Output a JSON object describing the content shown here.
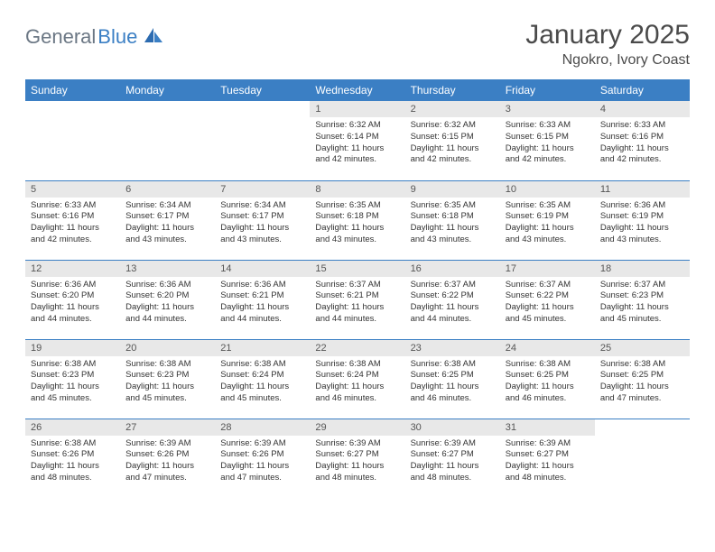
{
  "brand": {
    "text1": "General",
    "text2": "Blue"
  },
  "title": {
    "month": "January 2025",
    "location": "Ngokro, Ivory Coast"
  },
  "styling": {
    "header_bg": "#3b7fc4",
    "header_text": "#ffffff",
    "daynum_bg": "#e8e8e8",
    "row_border": "#3b7fc4",
    "body_font_size": 9.5,
    "header_font_size": 12,
    "title_font_size": 30
  },
  "day_names": [
    "Sunday",
    "Monday",
    "Tuesday",
    "Wednesday",
    "Thursday",
    "Friday",
    "Saturday"
  ],
  "weeks": [
    [
      {
        "n": "",
        "sr": "",
        "ss": "",
        "dl": ""
      },
      {
        "n": "",
        "sr": "",
        "ss": "",
        "dl": ""
      },
      {
        "n": "",
        "sr": "",
        "ss": "",
        "dl": ""
      },
      {
        "n": "1",
        "sr": "Sunrise: 6:32 AM",
        "ss": "Sunset: 6:14 PM",
        "dl": "Daylight: 11 hours and 42 minutes."
      },
      {
        "n": "2",
        "sr": "Sunrise: 6:32 AM",
        "ss": "Sunset: 6:15 PM",
        "dl": "Daylight: 11 hours and 42 minutes."
      },
      {
        "n": "3",
        "sr": "Sunrise: 6:33 AM",
        "ss": "Sunset: 6:15 PM",
        "dl": "Daylight: 11 hours and 42 minutes."
      },
      {
        "n": "4",
        "sr": "Sunrise: 6:33 AM",
        "ss": "Sunset: 6:16 PM",
        "dl": "Daylight: 11 hours and 42 minutes."
      }
    ],
    [
      {
        "n": "5",
        "sr": "Sunrise: 6:33 AM",
        "ss": "Sunset: 6:16 PM",
        "dl": "Daylight: 11 hours and 42 minutes."
      },
      {
        "n": "6",
        "sr": "Sunrise: 6:34 AM",
        "ss": "Sunset: 6:17 PM",
        "dl": "Daylight: 11 hours and 43 minutes."
      },
      {
        "n": "7",
        "sr": "Sunrise: 6:34 AM",
        "ss": "Sunset: 6:17 PM",
        "dl": "Daylight: 11 hours and 43 minutes."
      },
      {
        "n": "8",
        "sr": "Sunrise: 6:35 AM",
        "ss": "Sunset: 6:18 PM",
        "dl": "Daylight: 11 hours and 43 minutes."
      },
      {
        "n": "9",
        "sr": "Sunrise: 6:35 AM",
        "ss": "Sunset: 6:18 PM",
        "dl": "Daylight: 11 hours and 43 minutes."
      },
      {
        "n": "10",
        "sr": "Sunrise: 6:35 AM",
        "ss": "Sunset: 6:19 PM",
        "dl": "Daylight: 11 hours and 43 minutes."
      },
      {
        "n": "11",
        "sr": "Sunrise: 6:36 AM",
        "ss": "Sunset: 6:19 PM",
        "dl": "Daylight: 11 hours and 43 minutes."
      }
    ],
    [
      {
        "n": "12",
        "sr": "Sunrise: 6:36 AM",
        "ss": "Sunset: 6:20 PM",
        "dl": "Daylight: 11 hours and 44 minutes."
      },
      {
        "n": "13",
        "sr": "Sunrise: 6:36 AM",
        "ss": "Sunset: 6:20 PM",
        "dl": "Daylight: 11 hours and 44 minutes."
      },
      {
        "n": "14",
        "sr": "Sunrise: 6:36 AM",
        "ss": "Sunset: 6:21 PM",
        "dl": "Daylight: 11 hours and 44 minutes."
      },
      {
        "n": "15",
        "sr": "Sunrise: 6:37 AM",
        "ss": "Sunset: 6:21 PM",
        "dl": "Daylight: 11 hours and 44 minutes."
      },
      {
        "n": "16",
        "sr": "Sunrise: 6:37 AM",
        "ss": "Sunset: 6:22 PM",
        "dl": "Daylight: 11 hours and 44 minutes."
      },
      {
        "n": "17",
        "sr": "Sunrise: 6:37 AM",
        "ss": "Sunset: 6:22 PM",
        "dl": "Daylight: 11 hours and 45 minutes."
      },
      {
        "n": "18",
        "sr": "Sunrise: 6:37 AM",
        "ss": "Sunset: 6:23 PM",
        "dl": "Daylight: 11 hours and 45 minutes."
      }
    ],
    [
      {
        "n": "19",
        "sr": "Sunrise: 6:38 AM",
        "ss": "Sunset: 6:23 PM",
        "dl": "Daylight: 11 hours and 45 minutes."
      },
      {
        "n": "20",
        "sr": "Sunrise: 6:38 AM",
        "ss": "Sunset: 6:23 PM",
        "dl": "Daylight: 11 hours and 45 minutes."
      },
      {
        "n": "21",
        "sr": "Sunrise: 6:38 AM",
        "ss": "Sunset: 6:24 PM",
        "dl": "Daylight: 11 hours and 45 minutes."
      },
      {
        "n": "22",
        "sr": "Sunrise: 6:38 AM",
        "ss": "Sunset: 6:24 PM",
        "dl": "Daylight: 11 hours and 46 minutes."
      },
      {
        "n": "23",
        "sr": "Sunrise: 6:38 AM",
        "ss": "Sunset: 6:25 PM",
        "dl": "Daylight: 11 hours and 46 minutes."
      },
      {
        "n": "24",
        "sr": "Sunrise: 6:38 AM",
        "ss": "Sunset: 6:25 PM",
        "dl": "Daylight: 11 hours and 46 minutes."
      },
      {
        "n": "25",
        "sr": "Sunrise: 6:38 AM",
        "ss": "Sunset: 6:25 PM",
        "dl": "Daylight: 11 hours and 47 minutes."
      }
    ],
    [
      {
        "n": "26",
        "sr": "Sunrise: 6:38 AM",
        "ss": "Sunset: 6:26 PM",
        "dl": "Daylight: 11 hours and 48 minutes."
      },
      {
        "n": "27",
        "sr": "Sunrise: 6:39 AM",
        "ss": "Sunset: 6:26 PM",
        "dl": "Daylight: 11 hours and 47 minutes."
      },
      {
        "n": "28",
        "sr": "Sunrise: 6:39 AM",
        "ss": "Sunset: 6:26 PM",
        "dl": "Daylight: 11 hours and 47 minutes."
      },
      {
        "n": "29",
        "sr": "Sunrise: 6:39 AM",
        "ss": "Sunset: 6:27 PM",
        "dl": "Daylight: 11 hours and 48 minutes."
      },
      {
        "n": "30",
        "sr": "Sunrise: 6:39 AM",
        "ss": "Sunset: 6:27 PM",
        "dl": "Daylight: 11 hours and 48 minutes."
      },
      {
        "n": "31",
        "sr": "Sunrise: 6:39 AM",
        "ss": "Sunset: 6:27 PM",
        "dl": "Daylight: 11 hours and 48 minutes."
      },
      {
        "n": "",
        "sr": "",
        "ss": "",
        "dl": ""
      }
    ]
  ]
}
